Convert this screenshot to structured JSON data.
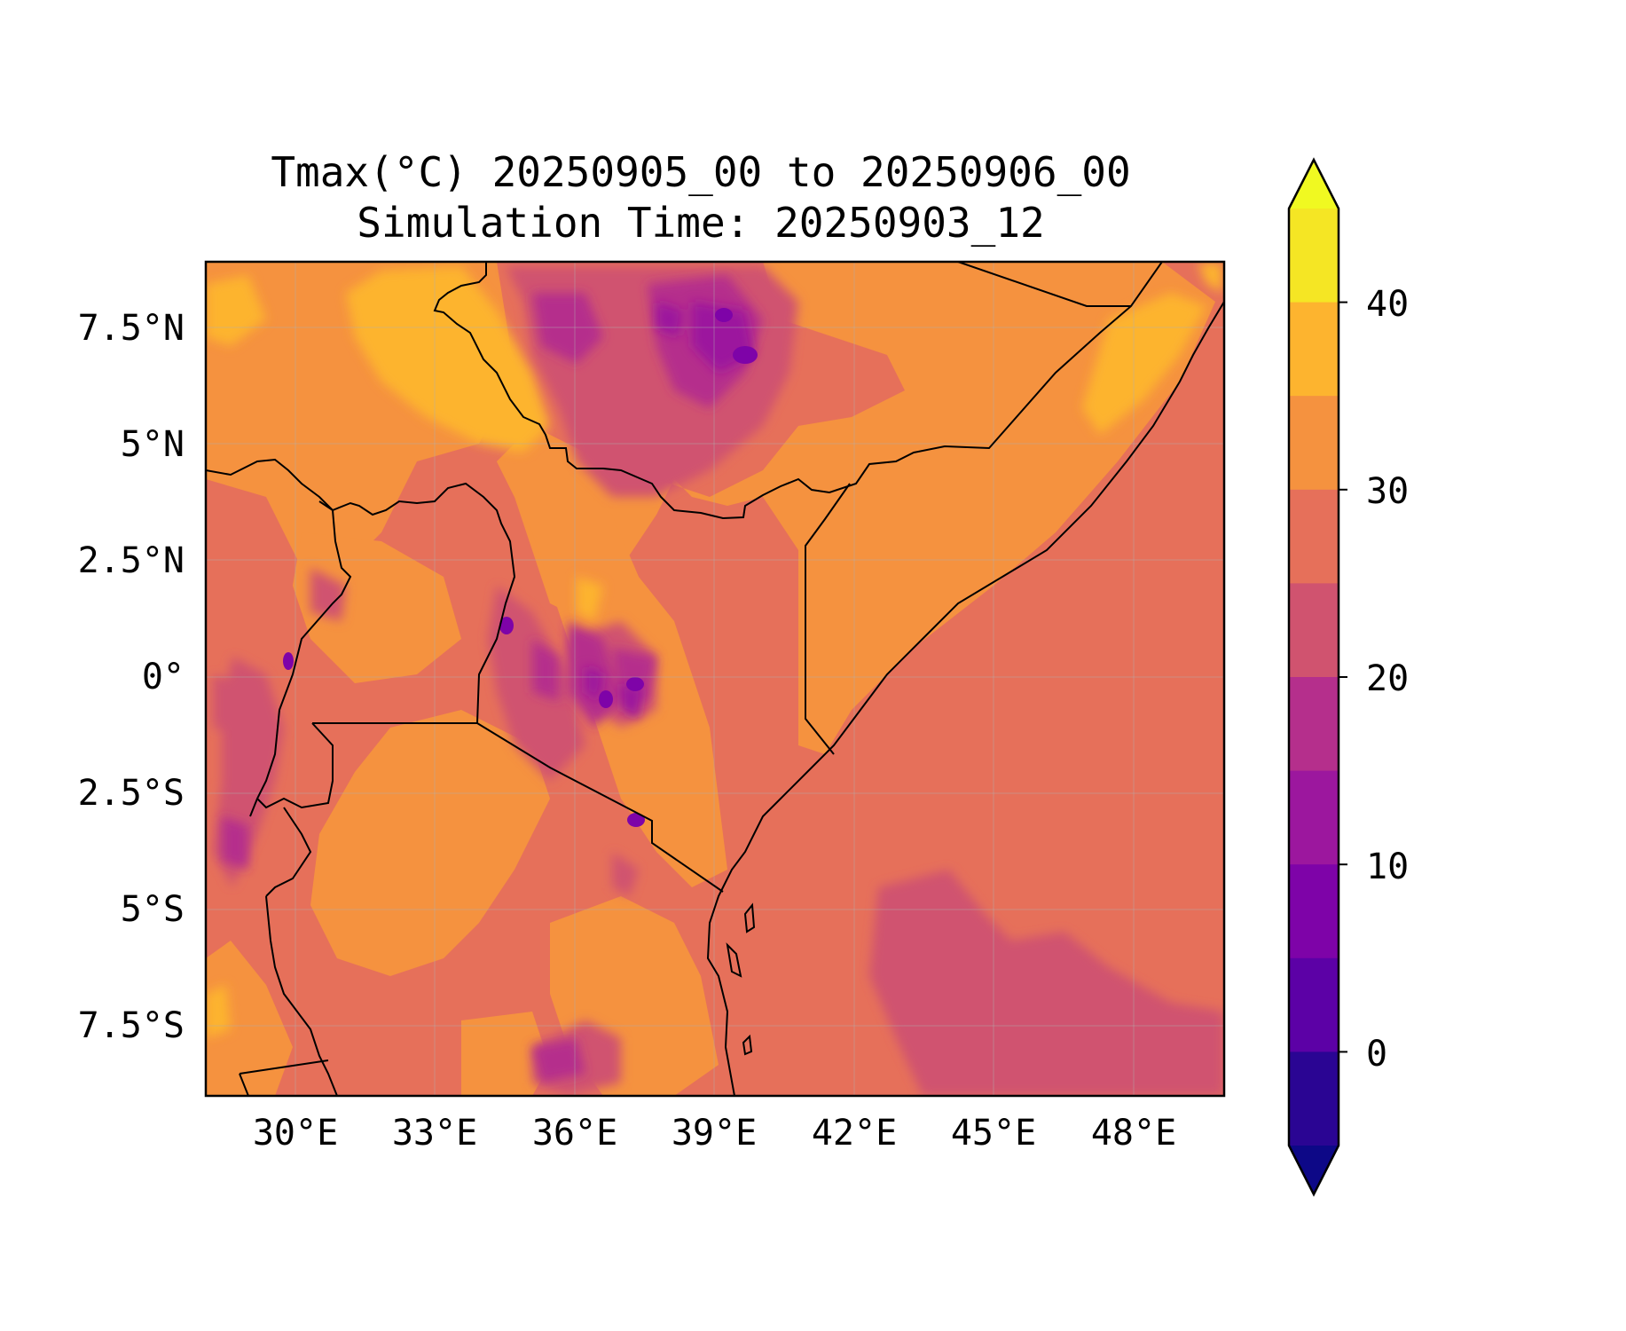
{
  "title": {
    "line1": "Tmax(°C) 20250905_00 to 20250906_00",
    "line2": "Simulation Time: 20250903_12"
  },
  "map": {
    "variable": "Tmax",
    "units": "°C",
    "region": "East Africa",
    "lon_range": [
      27.5,
      50.5
    ],
    "lat_range": [
      -8.9,
      8.9
    ],
    "x_ticks": [
      "30°E",
      "33°E",
      "36°E",
      "39°E",
      "42°E",
      "45°E",
      "48°E"
    ],
    "y_ticks": [
      "7.5°N",
      "5°N",
      "2.5°N",
      "0°",
      "2.5°S",
      "5°S",
      "7.5°S"
    ],
    "gridlines": true,
    "coastlines": true,
    "borders": true
  },
  "colorbar": {
    "ticks": [
      "40",
      "30",
      "20",
      "10",
      "0"
    ],
    "levels": [
      -5,
      0,
      5,
      10,
      15,
      20,
      25,
      30,
      35,
      40,
      45
    ],
    "extend": "both",
    "colormap": "plasma",
    "colors": [
      "#0d0887",
      "#2a0593",
      "#5c01a6",
      "#7e03a8",
      "#9c179e",
      "#b52f8c",
      "#d0536f",
      "#e6705a",
      "#f5923f",
      "#fdb42f",
      "#f5e624",
      "#f0f921"
    ]
  }
}
